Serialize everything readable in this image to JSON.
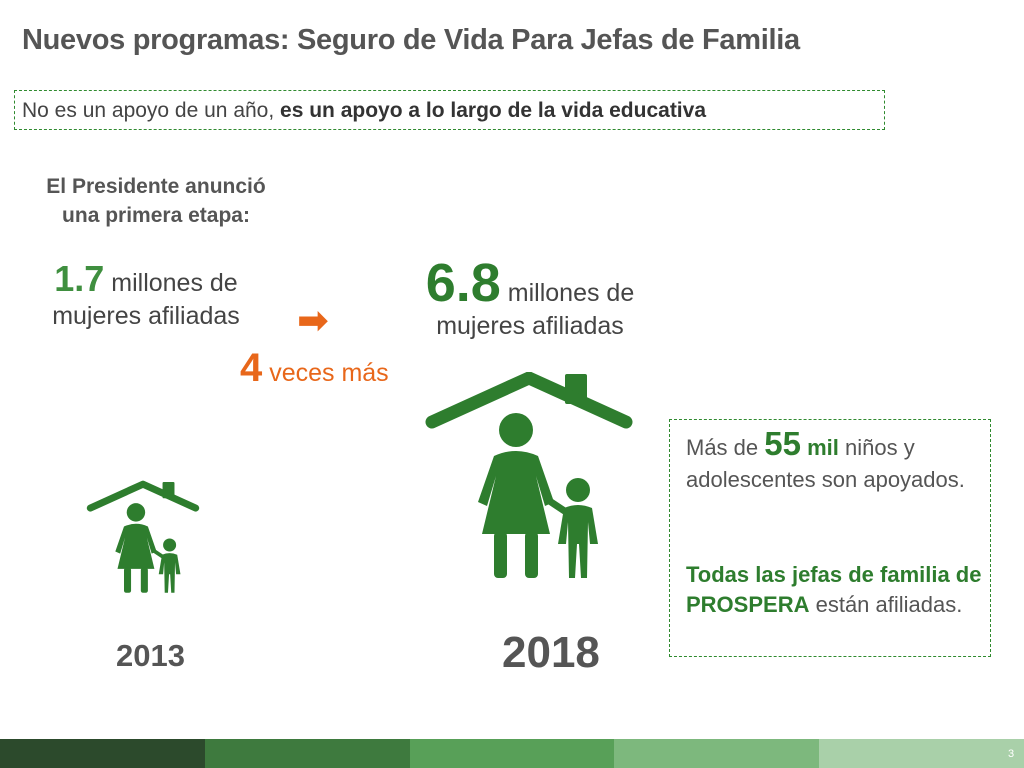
{
  "slide": {
    "title": "Nuevos programas: Seguro de Vida Para Jefas de Familia",
    "subtitle_normal": "No es un apoyo de un año, ",
    "subtitle_bold": "es un apoyo a lo largo de la vida educativa",
    "announce_line1": "El Presidente anunció",
    "announce_line2": "una primera etapa:",
    "stat1_number": "1.7",
    "stat1_text1": " millones de",
    "stat1_text2": "mujeres afiliadas",
    "arrow_glyph": "➡",
    "times_number": "4",
    "times_text": " veces más",
    "stat2_number": "6.8",
    "stat2_text1": " millones de",
    "stat2_text2": "mujeres afiliadas",
    "year_left": "2013",
    "year_right": "2018",
    "info_prefix": "Más de ",
    "info_number": "55",
    "info_mil": " mil",
    "info_rest": " niños y adolescentes son apoyados.",
    "info2_bold": "Todas las jefas de familia de PROSPERA",
    "info2_normal": " están afiliadas.",
    "page_number": "3"
  },
  "icons": {
    "family_house": "house-mother-child-icon",
    "arrow": "arrow-right-icon"
  },
  "colors": {
    "green_dark": "#2e7d2e",
    "green_mid": "#3f8f3f",
    "orange": "#e8671a",
    "bar": [
      "#2c4a2c",
      "#3e7a3e",
      "#58a058",
      "#7db87d",
      "#a9d0a9"
    ]
  }
}
